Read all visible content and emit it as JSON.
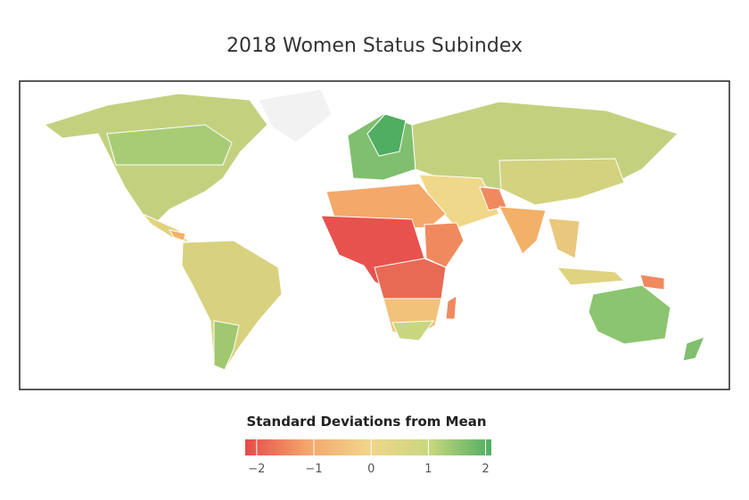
{
  "title": "2018 Women Status Subindex",
  "legend": {
    "title": "Standard Deviations from Mean",
    "range": [
      -2.2,
      2.1
    ],
    "colors": [
      "#e8494a",
      "#f3a56a",
      "#f2d58a",
      "#c8d77f",
      "#4fae62"
    ],
    "ticks": [
      {
        "value": -2,
        "label": "−2"
      },
      {
        "value": -1,
        "label": "−1"
      },
      0,
      1,
      2
    ]
  }
}
